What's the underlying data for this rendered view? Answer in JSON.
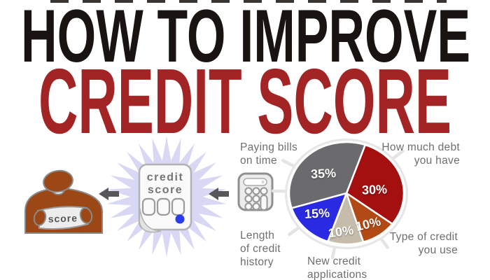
{
  "title": {
    "line1": "HOW TO IMPROVE",
    "line2": "CREDIT SCORE"
  },
  "colors": {
    "title_black": "#191412",
    "title_red": "#a32424",
    "label_gray": "#6e6e6e",
    "person_rust": "#9c4716",
    "arrow_gray": "#57575a",
    "starburst_lavender": "#d8d8f4",
    "paper_white": "#fafafa",
    "paper_border": "#b2b2b2",
    "dot_blue": "#2a3bed",
    "banner_white": "#ededed",
    "calculator_fill": "#ececec",
    "calculator_border": "#8f8f8f",
    "pie_ring": "#e6e6e6",
    "tick_gray": "#e4e4e4"
  },
  "illustration": {
    "banner_text": "score",
    "document_line1": "credit",
    "document_line2": "score"
  },
  "chart_data": {
    "type": "pie",
    "start_angle_deg": 19,
    "clockwise": true,
    "value_suffix": "%",
    "legend_position": "around",
    "slices": [
      {
        "label": "How much debt\nyou have",
        "value": 30,
        "color": "#a40f10"
      },
      {
        "label": "Type of credit\nyou use",
        "value": 10,
        "color": "#b24a16"
      },
      {
        "label": "New credit\napplications",
        "value": 10,
        "color": "#c6bcab"
      },
      {
        "label": "Length\nof credit\nhistory",
        "value": 15,
        "color": "#2a2ae2"
      },
      {
        "label": "Paying bills\non time",
        "value": 35,
        "color": "#6b6b6d"
      }
    ]
  }
}
